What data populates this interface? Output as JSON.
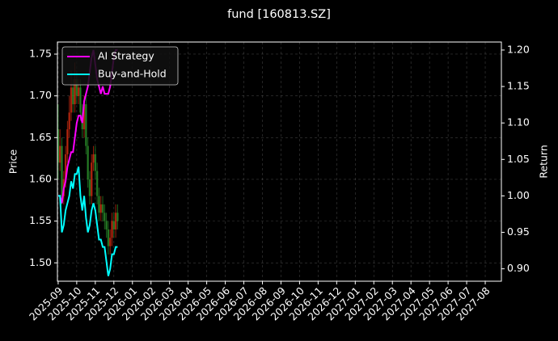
{
  "chart_data": {
    "type": "candlestick",
    "title": "fund [160813.SZ]",
    "ylabel": "Price",
    "y2label": "Return",
    "x": [
      0,
      0.1,
      0.2,
      0.3,
      0.4,
      0.5,
      0.6,
      0.7,
      0.8,
      0.9,
      1.0,
      1.1,
      1.2,
      1.3,
      1.4,
      1.5,
      1.6,
      1.7,
      1.8,
      1.9,
      2.0,
      2.1,
      2.2,
      2.3,
      2.4,
      2.5,
      2.6,
      2.7,
      2.8,
      2.9,
      3.0,
      3.1,
      3.2
    ],
    "open": [
      1.66,
      1.62,
      1.64,
      1.58,
      1.6,
      1.63,
      1.66,
      1.68,
      1.71,
      1.69,
      1.72,
      1.7,
      1.71,
      1.68,
      1.66,
      1.69,
      1.64,
      1.6,
      1.58,
      1.62,
      1.63,
      1.61,
      1.58,
      1.56,
      1.57,
      1.56,
      1.55,
      1.54,
      1.52,
      1.53,
      1.55,
      1.54,
      1.56
    ],
    "high": [
      1.69,
      1.66,
      1.65,
      1.61,
      1.64,
      1.67,
      1.7,
      1.73,
      1.72,
      1.74,
      1.73,
      1.72,
      1.72,
      1.69,
      1.7,
      1.7,
      1.65,
      1.61,
      1.63,
      1.64,
      1.64,
      1.62,
      1.59,
      1.58,
      1.58,
      1.57,
      1.56,
      1.55,
      1.54,
      1.56,
      1.56,
      1.57,
      1.57
    ],
    "low": [
      1.6,
      1.61,
      1.57,
      1.57,
      1.59,
      1.62,
      1.65,
      1.67,
      1.68,
      1.68,
      1.69,
      1.69,
      1.67,
      1.65,
      1.65,
      1.63,
      1.59,
      1.57,
      1.57,
      1.61,
      1.6,
      1.57,
      1.55,
      1.55,
      1.55,
      1.54,
      1.53,
      1.51,
      1.51,
      1.52,
      1.53,
      1.53,
      1.54
    ],
    "close": [
      1.62,
      1.64,
      1.58,
      1.6,
      1.63,
      1.66,
      1.68,
      1.71,
      1.69,
      1.72,
      1.7,
      1.71,
      1.68,
      1.66,
      1.69,
      1.64,
      1.6,
      1.58,
      1.62,
      1.63,
      1.61,
      1.58,
      1.56,
      1.57,
      1.56,
      1.55,
      1.54,
      1.52,
      1.53,
      1.55,
      1.54,
      1.56,
      1.55
    ],
    "up_color": "#c82a10",
    "down_color": "#2a8a2a",
    "series": [
      {
        "name": "AI Strategy",
        "color": "#ff00ff",
        "axis": "y2",
        "values": [
          1.0,
          1.0,
          0.99,
          1.01,
          1.02,
          1.04,
          1.05,
          1.06,
          1.06,
          1.08,
          1.1,
          1.11,
          1.11,
          1.1,
          1.13,
          1.14,
          1.15,
          1.17,
          1.19,
          1.2,
          1.18,
          1.16,
          1.15,
          1.14,
          1.15,
          1.14,
          1.14,
          1.14,
          1.15,
          1.17,
          1.19,
          1.2,
          1.2
        ]
      },
      {
        "name": "Buy-and-Hold",
        "color": "#00ffff",
        "axis": "y2",
        "values": [
          1.0,
          1.0,
          0.95,
          0.96,
          0.98,
          0.99,
          1.0,
          1.02,
          1.01,
          1.03,
          1.03,
          1.04,
          1.0,
          0.98,
          1.0,
          0.97,
          0.95,
          0.96,
          0.98,
          0.99,
          0.98,
          0.96,
          0.94,
          0.94,
          0.93,
          0.93,
          0.91,
          0.89,
          0.9,
          0.92,
          0.92,
          0.93,
          0.93
        ]
      }
    ],
    "xlim": [
      -0.04,
      23.87
    ],
    "xticks": [
      {
        "value": 0,
        "label": "2025-09"
      },
      {
        "value": 1,
        "label": "2025-10"
      },
      {
        "value": 2,
        "label": "2025-11"
      },
      {
        "value": 3,
        "label": "2025-12"
      },
      {
        "value": 4,
        "label": "2026-01"
      },
      {
        "value": 5,
        "label": "2026-02"
      },
      {
        "value": 6,
        "label": "2026-03"
      },
      {
        "value": 7,
        "label": "2026-04"
      },
      {
        "value": 8,
        "label": "2026-05"
      },
      {
        "value": 9,
        "label": "2026-06"
      },
      {
        "value": 10,
        "label": "2026-07"
      },
      {
        "value": 11,
        "label": "2026-08"
      },
      {
        "value": 12,
        "label": "2026-09"
      },
      {
        "value": 13,
        "label": "2026-10"
      },
      {
        "value": 14,
        "label": "2026-11"
      },
      {
        "value": 15,
        "label": "2026-12"
      },
      {
        "value": 16,
        "label": "2027-01"
      },
      {
        "value": 17,
        "label": "2027-02"
      },
      {
        "value": 18,
        "label": "2027-03"
      },
      {
        "value": 19,
        "label": "2027-04"
      },
      {
        "value": 20,
        "label": "2027-05"
      },
      {
        "value": 21,
        "label": "2027-06"
      },
      {
        "value": 22,
        "label": "2027-07"
      },
      {
        "value": 23,
        "label": "2027-08"
      }
    ],
    "ylim": [
      1.478,
      1.7645
    ],
    "yticks": [
      {
        "value": 1.5,
        "label": "1.50"
      },
      1.55,
      {
        "value": 1.6,
        "label": "1.60"
      },
      1.65,
      {
        "value": 1.7,
        "label": "1.70"
      },
      1.75
    ],
    "y2lim": [
      0.883,
      1.211
    ],
    "y2ticks": [
      {
        "value": 0.9,
        "label": "0.90"
      },
      0.95,
      {
        "value": 1.0,
        "label": "1.00"
      },
      1.05,
      {
        "value": 1.1,
        "label": "1.10"
      },
      1.15,
      {
        "value": 1.2,
        "label": "1.20"
      }
    ],
    "grid": true,
    "legend": "upper left"
  }
}
